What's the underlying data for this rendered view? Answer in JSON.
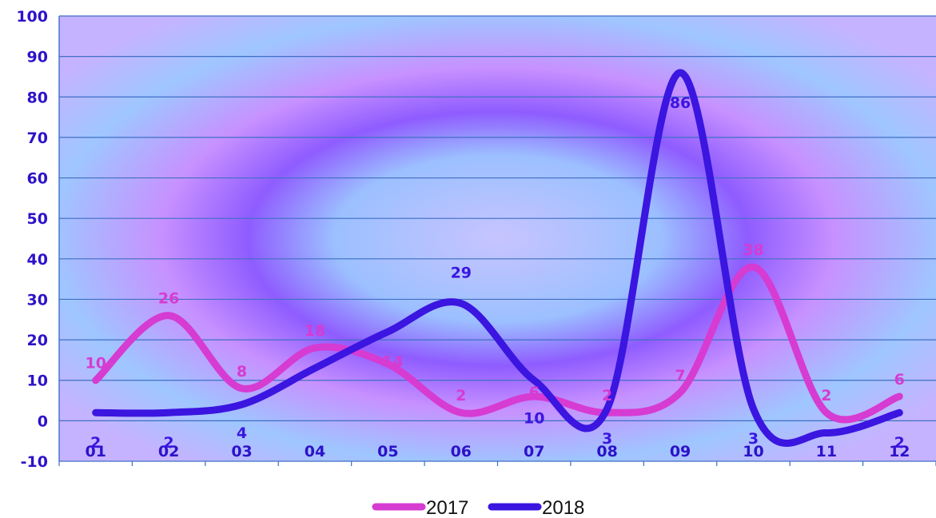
{
  "chart_data": {
    "type": "line",
    "categories": [
      "01",
      "02",
      "03",
      "04",
      "05",
      "06",
      "07",
      "08",
      "09",
      "10",
      "11",
      "12"
    ],
    "series": [
      {
        "name": "2017",
        "color": "#d63bd2",
        "values": [
          10,
          26,
          8,
          18,
          14,
          2,
          6,
          2,
          7,
          38,
          2,
          6
        ]
      },
      {
        "name": "2018",
        "color": "#3b15e0",
        "values": [
          2,
          2,
          4,
          13,
          22,
          29,
          10,
          3,
          86,
          3,
          -3,
          2
        ]
      }
    ],
    "data_labels": {
      "2017": [
        "10",
        "26",
        "8",
        "18",
        "14",
        "2",
        "6",
        "2",
        "7",
        "38",
        "2",
        "6"
      ],
      "2018": [
        "2",
        "2",
        "4",
        "",
        "",
        "29",
        "10",
        "3",
        "86",
        "3",
        "",
        "2"
      ]
    },
    "ylim": [
      -10,
      100
    ],
    "yticks": [
      -10,
      0,
      10,
      20,
      30,
      40,
      50,
      60,
      70,
      80,
      90,
      100
    ],
    "grid": true,
    "legend": "bottom-center",
    "title": "",
    "xlabel": "",
    "ylabel": ""
  }
}
